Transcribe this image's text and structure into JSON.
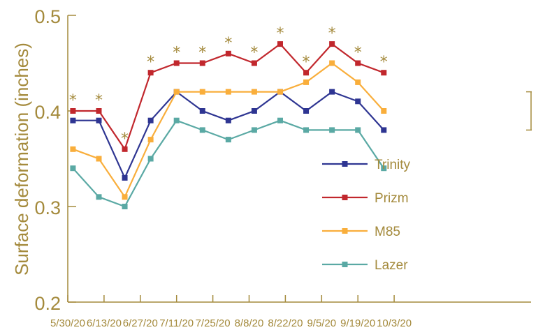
{
  "chart_data": {
    "type": "line",
    "title": "",
    "xlabel": "",
    "ylabel": "Surface deformation (inches)",
    "ylim": [
      0.2,
      0.5
    ],
    "yticks": [
      "0.2",
      "0.3",
      "0.4",
      "0.5"
    ],
    "ytick_values": [
      0.2,
      0.3,
      0.4,
      0.5
    ],
    "date_ticks": [
      "5/30/20",
      "6/13/20",
      "6/27/20",
      "7/11/20",
      "7/25/20",
      "8/8/20",
      "8/22/20",
      "9/5/20",
      "9/19/20",
      "10/3/20"
    ],
    "x": [
      "6/1/20",
      "6/11/20",
      "6/21/20",
      "7/1/20",
      "7/11/20",
      "7/21/20",
      "7/31/20",
      "8/10/20",
      "8/20/20",
      "8/30/20",
      "9/9/20",
      "9/19/20",
      "9/29/20"
    ],
    "series": [
      {
        "name": "Trinity",
        "color": "#2e3592",
        "values": [
          0.39,
          0.39,
          0.33,
          0.39,
          0.42,
          0.4,
          0.39,
          0.4,
          0.42,
          0.4,
          0.42,
          0.41,
          0.38
        ]
      },
      {
        "name": "Prizm",
        "color": "#c1272d",
        "values": [
          0.4,
          0.4,
          0.36,
          0.44,
          0.45,
          0.45,
          0.46,
          0.45,
          0.47,
          0.44,
          0.47,
          0.45,
          0.44
        ]
      },
      {
        "name": "M85",
        "color": "#f9ae3b",
        "values": [
          0.36,
          0.35,
          0.31,
          0.37,
          0.42,
          0.42,
          0.42,
          0.42,
          0.42,
          0.43,
          0.45,
          0.43,
          0.4
        ]
      },
      {
        "name": "Lazer",
        "color": "#5aa9a4",
        "values": [
          0.34,
          0.31,
          0.3,
          0.35,
          0.39,
          0.38,
          0.37,
          0.38,
          0.39,
          0.38,
          0.38,
          0.38,
          0.34
        ]
      }
    ],
    "significance_marker": "*",
    "error_bar_range": [
      0.38,
      0.42
    ],
    "grid": false,
    "legend_position": "center-right",
    "axis_color": "#a48a3c"
  }
}
